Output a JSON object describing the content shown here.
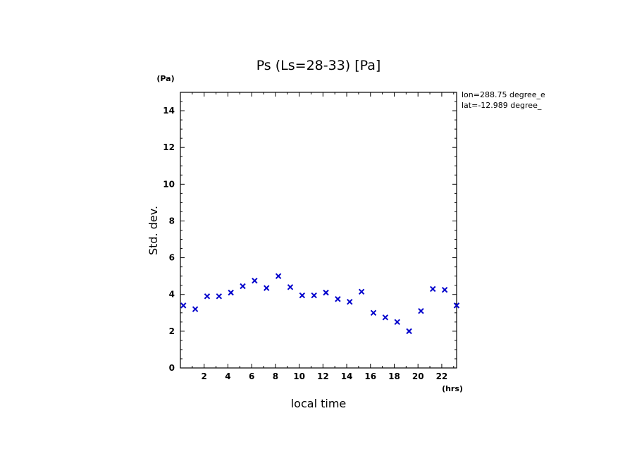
{
  "chart_data": {
    "type": "scatter",
    "title": "Ps (Ls=28-33) [Pa]",
    "xlabel": "local time",
    "ylabel": "Std. dev.",
    "x_unit": "(hrs)",
    "y_unit": "(Pa)",
    "xlim": [
      0,
      23.25
    ],
    "ylim": [
      0,
      15
    ],
    "x_ticks": [
      2,
      4,
      6,
      8,
      10,
      12,
      14,
      16,
      18,
      20,
      22
    ],
    "y_ticks": [
      0,
      2,
      4,
      6,
      8,
      10,
      12,
      14
    ],
    "marker": "x",
    "marker_color": "#0000cc",
    "annotations": [
      "lon=288.75 degree_e",
      "lat=-12.989 degree_"
    ],
    "series": [
      {
        "x": [
          0.25,
          1.25,
          2.25,
          3.25,
          4.25,
          5.25,
          6.25,
          7.25,
          8.25,
          9.25,
          10.25,
          11.25,
          12.25,
          13.25,
          14.25,
          15.25,
          16.25,
          17.25,
          18.25,
          19.25,
          20.25,
          21.25,
          22.25,
          23.25
        ],
        "y": [
          3.4,
          3.2,
          3.9,
          3.9,
          4.1,
          4.45,
          4.75,
          4.35,
          5.0,
          4.4,
          3.95,
          3.95,
          4.1,
          3.75,
          3.6,
          4.15,
          3.0,
          2.75,
          2.5,
          2.0,
          3.1,
          4.3,
          4.25,
          3.4
        ]
      }
    ]
  }
}
